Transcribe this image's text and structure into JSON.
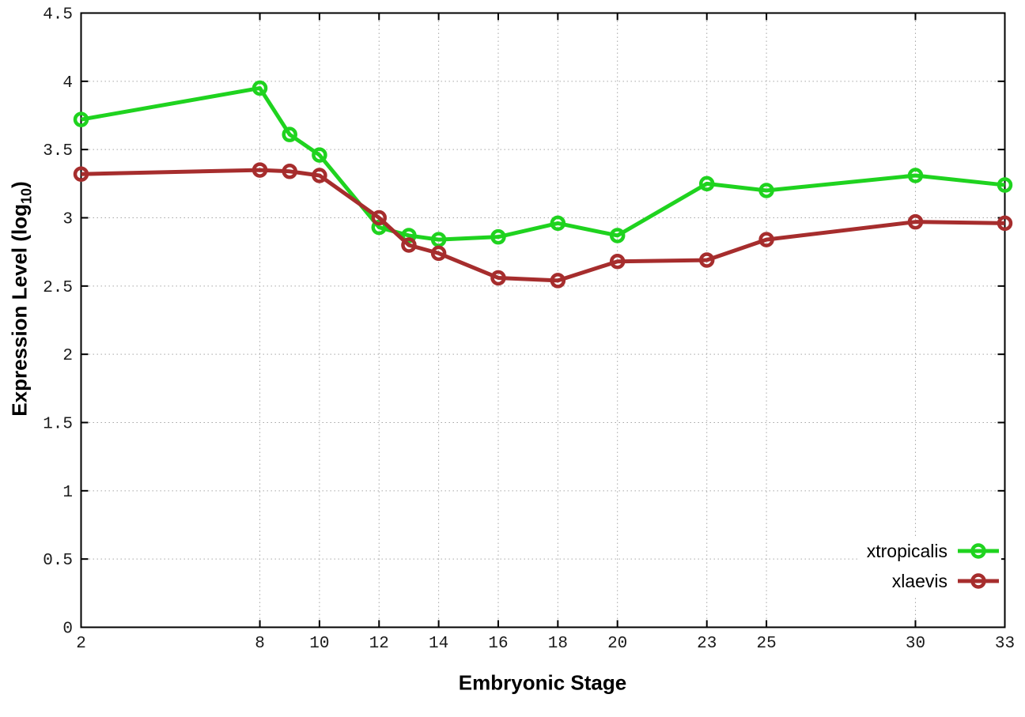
{
  "window": {
    "background": "#ffffff"
  },
  "chart_data": {
    "type": "line",
    "title": "",
    "xlabel": "Embryonic Stage",
    "ylabel": "Expression Level (log10)",
    "ylabel_parts": {
      "base": "Expression Level (log",
      "sub": "10",
      "close": ")"
    },
    "xlim": [
      2,
      33
    ],
    "ylim": [
      0,
      4.5
    ],
    "x": [
      2,
      8,
      9,
      10,
      12,
      13,
      14,
      16,
      18,
      20,
      23,
      25,
      30,
      33
    ],
    "x_ticks": [
      2,
      8,
      10,
      12,
      14,
      16,
      18,
      20,
      23,
      25,
      30,
      33
    ],
    "y_ticks": [
      0,
      0.5,
      1,
      1.5,
      2,
      2.5,
      3,
      3.5,
      4,
      4.5
    ],
    "y_tick_labels": [
      "0",
      "0.5",
      "1",
      "1.5",
      "2",
      "2.5",
      "3",
      "3.5",
      "4",
      "4.5"
    ],
    "grid": true,
    "legend_position": "bottom-right",
    "marker": "open-circle",
    "series": [
      {
        "name": "xtropicalis",
        "color": "#1fd31f",
        "values": [
          3.72,
          3.95,
          3.61,
          3.46,
          2.93,
          2.87,
          2.84,
          2.86,
          2.96,
          2.87,
          3.25,
          3.2,
          3.31,
          3.24
        ]
      },
      {
        "name": "xlaevis",
        "color": "#a62d2d",
        "values": [
          3.32,
          3.35,
          3.34,
          3.31,
          3.0,
          2.8,
          2.74,
          2.56,
          2.54,
          2.68,
          2.69,
          2.84,
          2.97,
          2.96
        ]
      }
    ],
    "styles": {
      "border_color": "#000000",
      "grid_color": "#a6a6a6",
      "tick_label_color": "#1a1a1a",
      "axis_title_color": "#000000",
      "line_width": 5,
      "marker_radius": 7.5,
      "marker_stroke": 4.5
    }
  },
  "legend": {
    "items": [
      {
        "label": "xtropicalis"
      },
      {
        "label": "xlaevis"
      }
    ]
  }
}
